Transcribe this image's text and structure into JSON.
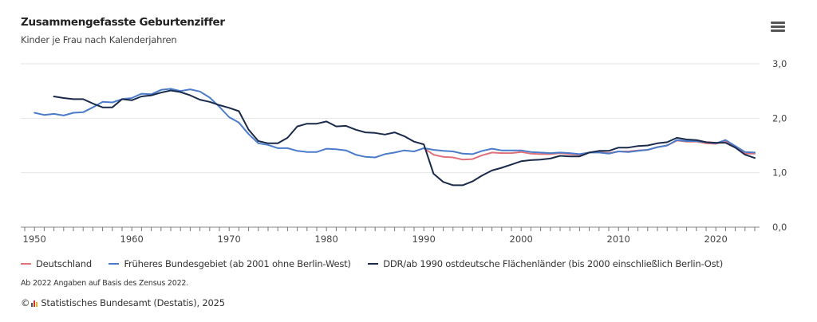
{
  "header": {
    "title": "Zusammengefasste Geburtenziffer",
    "subtitle": "Kinder je Frau nach Kalenderjahren",
    "menu_icon": "hamburger-menu-icon"
  },
  "footer": {
    "note": "Ab 2022 Angaben auf Basis des Zensus 2022.",
    "copyright_symbol": "©",
    "credit": "Statistisches Bundesamt (Destatis), 2025"
  },
  "chart_data": {
    "type": "line",
    "title": "Zusammengefasste Geburtenziffer",
    "subtitle": "Kinder je Frau nach Kalenderjahren",
    "xlabel": "",
    "ylabel": "",
    "xlim": [
      1949,
      2024
    ],
    "ylim": [
      0,
      3
    ],
    "x_ticks": [
      1950,
      1960,
      1970,
      1980,
      1990,
      2000,
      2010,
      2020
    ],
    "y_ticks": [
      0,
      1,
      2,
      3
    ],
    "y_tick_labels": [
      "0,0",
      "1,0",
      "2,0",
      "3,0"
    ],
    "y_axis_position": "right",
    "grid": true,
    "legend_position": "bottom",
    "series": [
      {
        "name": "Deutschland",
        "color": "#e0707a",
        "x": [
          1990,
          1991,
          1992,
          1993,
          1994,
          1995,
          1996,
          1997,
          1998,
          1999,
          2000,
          2001,
          2002,
          2003,
          2004,
          2005,
          2006,
          2007,
          2008,
          2009,
          2010,
          2011,
          2012,
          2013,
          2014,
          2015,
          2016,
          2017,
          2018,
          2019,
          2020,
          2021,
          2022,
          2023,
          2024
        ],
        "values": [
          1.45,
          1.33,
          1.29,
          1.28,
          1.24,
          1.25,
          1.32,
          1.37,
          1.36,
          1.36,
          1.38,
          1.35,
          1.34,
          1.34,
          1.36,
          1.34,
          1.33,
          1.37,
          1.38,
          1.36,
          1.39,
          1.39,
          1.41,
          1.42,
          1.47,
          1.5,
          1.59,
          1.57,
          1.57,
          1.54,
          1.53,
          1.58,
          1.46,
          1.35,
          1.35
        ]
      },
      {
        "name": "Früheres Bundesgebiet (ab 2001 ohne Berlin-West)",
        "color": "#4a7cc9",
        "x": [
          1950,
          1951,
          1952,
          1953,
          1954,
          1955,
          1956,
          1957,
          1958,
          1959,
          1960,
          1961,
          1962,
          1963,
          1964,
          1965,
          1966,
          1967,
          1968,
          1969,
          1970,
          1971,
          1972,
          1973,
          1974,
          1975,
          1976,
          1977,
          1978,
          1979,
          1980,
          1981,
          1982,
          1983,
          1984,
          1985,
          1986,
          1987,
          1988,
          1989,
          1990,
          1991,
          1992,
          1993,
          1994,
          1995,
          1996,
          1997,
          1998,
          1999,
          2000,
          2001,
          2002,
          2003,
          2004,
          2005,
          2006,
          2007,
          2008,
          2009,
          2010,
          2011,
          2012,
          2013,
          2014,
          2015,
          2016,
          2017,
          2018,
          2019,
          2020,
          2021,
          2022,
          2023,
          2024
        ],
        "values": [
          2.1,
          2.06,
          2.08,
          2.05,
          2.1,
          2.11,
          2.2,
          2.3,
          2.29,
          2.35,
          2.37,
          2.45,
          2.44,
          2.52,
          2.54,
          2.5,
          2.53,
          2.49,
          2.38,
          2.21,
          2.02,
          1.92,
          1.71,
          1.54,
          1.51,
          1.45,
          1.45,
          1.4,
          1.38,
          1.38,
          1.44,
          1.43,
          1.41,
          1.33,
          1.29,
          1.28,
          1.34,
          1.37,
          1.41,
          1.39,
          1.45,
          1.42,
          1.4,
          1.39,
          1.35,
          1.34,
          1.4,
          1.44,
          1.41,
          1.41,
          1.41,
          1.38,
          1.37,
          1.36,
          1.37,
          1.36,
          1.34,
          1.37,
          1.37,
          1.35,
          1.39,
          1.38,
          1.4,
          1.42,
          1.47,
          1.5,
          1.6,
          1.58,
          1.58,
          1.56,
          1.54,
          1.6,
          1.49,
          1.38,
          1.37
        ]
      },
      {
        "name": "DDR/ab 1990 ostdeutsche Flächenländer (bis 2000 einschließlich Berlin-Ost)",
        "color": "#1a2a4a",
        "x": [
          1952,
          1953,
          1954,
          1955,
          1956,
          1957,
          1958,
          1959,
          1960,
          1961,
          1962,
          1963,
          1964,
          1965,
          1966,
          1967,
          1968,
          1969,
          1970,
          1971,
          1972,
          1973,
          1974,
          1975,
          1976,
          1977,
          1978,
          1979,
          1980,
          1981,
          1982,
          1983,
          1984,
          1985,
          1986,
          1987,
          1988,
          1989,
          1990,
          1991,
          1992,
          1993,
          1994,
          1995,
          1996,
          1997,
          1998,
          1999,
          2000,
          2001,
          2002,
          2003,
          2004,
          2005,
          2006,
          2007,
          2008,
          2009,
          2010,
          2011,
          2012,
          2013,
          2014,
          2015,
          2016,
          2017,
          2018,
          2019,
          2020,
          2021,
          2022,
          2023,
          2024
        ],
        "values": [
          2.4,
          2.37,
          2.35,
          2.35,
          2.27,
          2.2,
          2.2,
          2.35,
          2.33,
          2.4,
          2.42,
          2.47,
          2.51,
          2.48,
          2.42,
          2.34,
          2.3,
          2.24,
          2.19,
          2.13,
          1.79,
          1.58,
          1.54,
          1.54,
          1.64,
          1.85,
          1.9,
          1.9,
          1.94,
          1.85,
          1.86,
          1.79,
          1.74,
          1.73,
          1.7,
          1.74,
          1.67,
          1.57,
          1.52,
          0.98,
          0.83,
          0.77,
          0.77,
          0.84,
          0.95,
          1.04,
          1.09,
          1.15,
          1.21,
          1.23,
          1.24,
          1.26,
          1.31,
          1.3,
          1.3,
          1.37,
          1.4,
          1.4,
          1.46,
          1.46,
          1.49,
          1.5,
          1.54,
          1.56,
          1.64,
          1.61,
          1.6,
          1.56,
          1.55,
          1.55,
          1.46,
          1.33,
          1.27
        ]
      }
    ]
  }
}
